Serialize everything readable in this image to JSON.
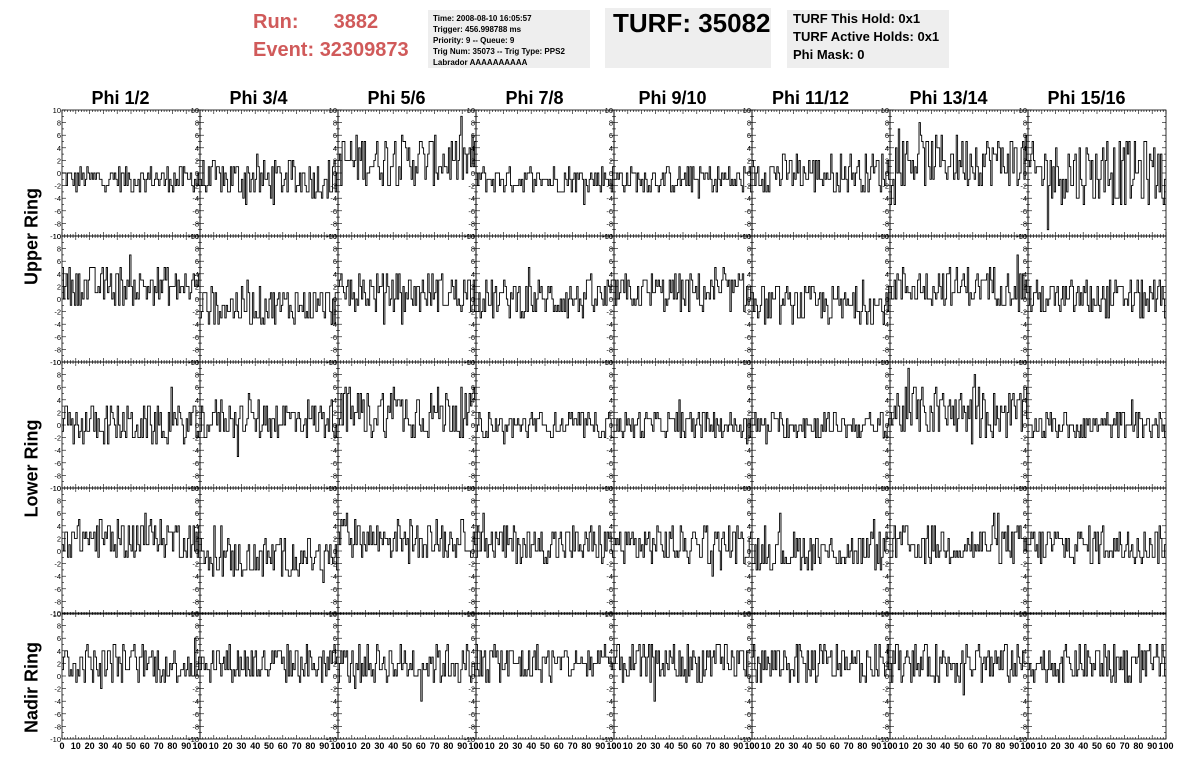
{
  "header": {
    "run_label": "Run:",
    "run_value": "3882",
    "event_label": "Event:",
    "event_value": "32309873",
    "info_lines": [
      "Time: 2008-08-10 16:05:57",
      "Trigger: 456.998788 ms",
      "Priority: 9 -- Queue: 9",
      "Trig Num: 35073 -- Trig Type: PPS2",
      "Labrador AAAAAAAAAA"
    ],
    "turf": "TURF: 35082",
    "hold_lines": [
      "TURF This Hold: 0x1",
      "TURF Active Holds: 0x1",
      "Phi Mask: 0"
    ]
  },
  "columns": [
    "Phi 1/2",
    "Phi 3/4",
    "Phi 5/6",
    "Phi 7/8",
    "Phi 9/10",
    "Phi 11/12",
    "Phi 13/14",
    "Phi 15/16"
  ],
  "rings": [
    "Upper Ring",
    "Lower Ring",
    "Nadir Ring"
  ],
  "colors": {
    "run_text": "#d05a5a",
    "trace": "#000000",
    "info_bg": "#eeeeee"
  },
  "chart_data": {
    "type": "line",
    "layout": "grid of 5 rows x 8 columns of small waveform panels",
    "xlim": [
      0,
      100
    ],
    "ylim": [
      -10,
      10
    ],
    "x_tick_labels": [
      "0",
      "10",
      "20",
      "30",
      "40",
      "50",
      "60",
      "70",
      "80",
      "90",
      "100"
    ],
    "y_tick_labels": [
      "10",
      "8",
      "6",
      "4",
      "2",
      "0",
      "-2",
      "-4",
      "-6",
      "-8",
      "-10"
    ],
    "grid": false,
    "panel_baselines": [
      [
        -1,
        -1,
        2,
        -1,
        -1,
        0,
        2,
        0
      ],
      [
        2,
        -1,
        1,
        0,
        1,
        -1,
        2,
        0
      ],
      [
        0,
        1,
        2,
        0,
        0,
        0,
        2,
        0
      ],
      [
        2,
        -1,
        2,
        1,
        1,
        0,
        1,
        1
      ],
      [
        2,
        2,
        2,
        2,
        2,
        2,
        2,
        2
      ]
    ],
    "panel_amplitudes": [
      [
        2,
        3,
        4,
        2,
        2,
        3,
        4,
        5
      ],
      [
        3,
        3,
        3,
        3,
        3,
        3,
        3,
        3
      ],
      [
        3,
        3,
        4,
        2,
        2,
        2,
        4,
        2
      ],
      [
        3,
        3,
        3,
        3,
        3,
        3,
        3,
        3
      ],
      [
        3,
        3,
        3,
        3,
        3,
        3,
        3,
        3
      ]
    ]
  }
}
